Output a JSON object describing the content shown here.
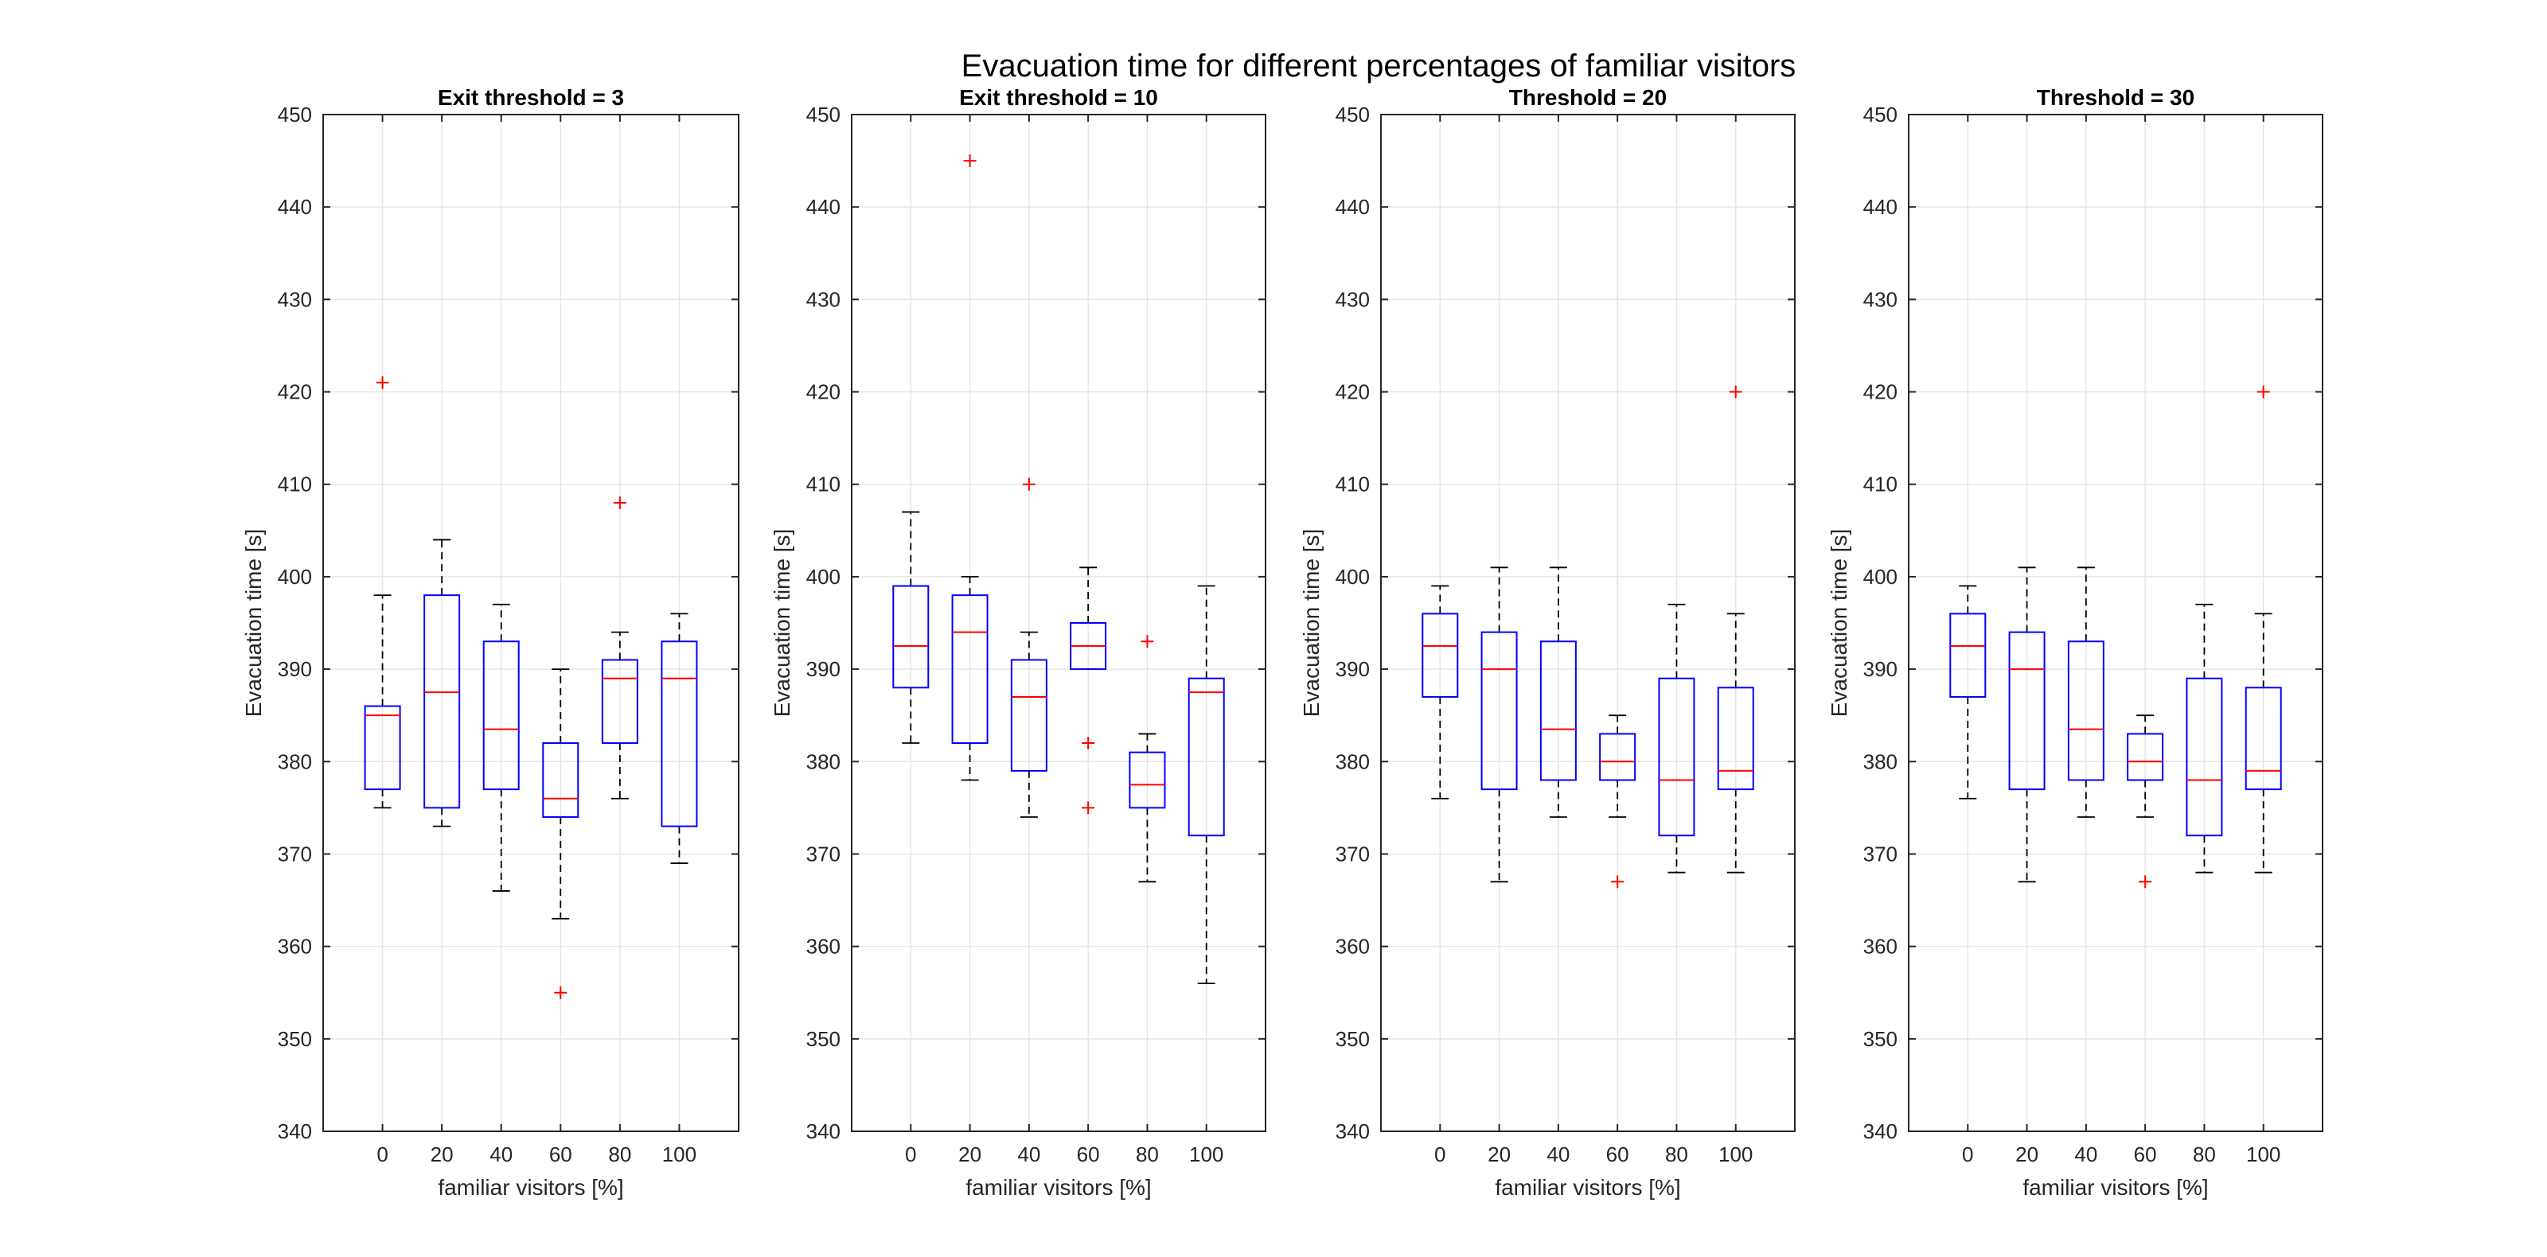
{
  "figure_title": "Evacuation time for different percentages of familiar visitors",
  "colors": {
    "box": "#0000ff",
    "median": "#ff0000",
    "whisker": "#000000",
    "outlier": "#ff0000",
    "grid": "#e6e6e6",
    "axes": "#262626"
  },
  "chart_data": [
    {
      "type": "box",
      "title": "Exit threshold = 3",
      "xlabel": "familiar visitors [%]",
      "ylabel": "Evacuation time [s]",
      "ylim": [
        340,
        450
      ],
      "yticks": [
        340,
        350,
        360,
        370,
        380,
        390,
        400,
        410,
        420,
        430,
        440,
        450
      ],
      "grid": true,
      "categories": [
        "0",
        "20",
        "40",
        "60",
        "80",
        "100"
      ],
      "boxes": [
        {
          "whisker_low": 375,
          "q1": 377,
          "median": 385,
          "q3": 386,
          "whisker_high": 398,
          "outliers": [
            421
          ]
        },
        {
          "whisker_low": 373,
          "q1": 375,
          "median": 387.5,
          "q3": 398,
          "whisker_high": 404,
          "outliers": []
        },
        {
          "whisker_low": 366,
          "q1": 377,
          "median": 383.5,
          "q3": 393,
          "whisker_high": 397,
          "outliers": []
        },
        {
          "whisker_low": 363,
          "q1": 374,
          "median": 376,
          "q3": 382,
          "whisker_high": 390,
          "outliers": [
            355
          ]
        },
        {
          "whisker_low": 376,
          "q1": 382,
          "median": 389,
          "q3": 391,
          "whisker_high": 394,
          "outliers": [
            408
          ]
        },
        {
          "whisker_low": 369,
          "q1": 373,
          "median": 389,
          "q3": 393,
          "whisker_high": 396,
          "outliers": []
        }
      ]
    },
    {
      "type": "box",
      "title": "Exit threshold = 10",
      "xlabel": "familiar visitors [%]",
      "ylabel": "Evacuation time [s]",
      "ylim": [
        340,
        450
      ],
      "yticks": [
        340,
        350,
        360,
        370,
        380,
        390,
        400,
        410,
        420,
        430,
        440,
        450
      ],
      "grid": true,
      "categories": [
        "0",
        "20",
        "40",
        "60",
        "80",
        "100"
      ],
      "boxes": [
        {
          "whisker_low": 382,
          "q1": 388,
          "median": 392.5,
          "q3": 399,
          "whisker_high": 407,
          "outliers": []
        },
        {
          "whisker_low": 378,
          "q1": 382,
          "median": 394,
          "q3": 398,
          "whisker_high": 400,
          "outliers": [
            445
          ]
        },
        {
          "whisker_low": 374,
          "q1": 379,
          "median": 387,
          "q3": 391,
          "whisker_high": 394,
          "outliers": [
            410
          ]
        },
        {
          "whisker_low": 390,
          "q1": 390,
          "median": 392.5,
          "q3": 395,
          "whisker_high": 401,
          "outliers": [
            382,
            375
          ]
        },
        {
          "whisker_low": 367,
          "q1": 375,
          "median": 377.5,
          "q3": 381,
          "whisker_high": 383,
          "outliers": [
            393
          ]
        },
        {
          "whisker_low": 356,
          "q1": 372,
          "median": 387.5,
          "q3": 389,
          "whisker_high": 399,
          "outliers": []
        }
      ]
    },
    {
      "type": "box",
      "title": "Threshold = 20",
      "xlabel": "familiar visitors [%]",
      "ylabel": "Evacuation time [s]",
      "ylim": [
        340,
        450
      ],
      "yticks": [
        340,
        350,
        360,
        370,
        380,
        390,
        400,
        410,
        420,
        430,
        440,
        450
      ],
      "grid": true,
      "categories": [
        "0",
        "20",
        "40",
        "60",
        "80",
        "100"
      ],
      "boxes": [
        {
          "whisker_low": 376,
          "q1": 387,
          "median": 392.5,
          "q3": 396,
          "whisker_high": 399,
          "outliers": []
        },
        {
          "whisker_low": 367,
          "q1": 377,
          "median": 390,
          "q3": 394,
          "whisker_high": 401,
          "outliers": []
        },
        {
          "whisker_low": 374,
          "q1": 378,
          "median": 383.5,
          "q3": 393,
          "whisker_high": 401,
          "outliers": []
        },
        {
          "whisker_low": 374,
          "q1": 378,
          "median": 380,
          "q3": 383,
          "whisker_high": 385,
          "outliers": [
            367
          ]
        },
        {
          "whisker_low": 368,
          "q1": 372,
          "median": 378,
          "q3": 389,
          "whisker_high": 397,
          "outliers": []
        },
        {
          "whisker_low": 368,
          "q1": 377,
          "median": 379,
          "q3": 388,
          "whisker_high": 396,
          "outliers": [
            420
          ]
        }
      ]
    },
    {
      "type": "box",
      "title": "Threshold = 30",
      "xlabel": "familiar visitors [%]",
      "ylabel": "Evacuation time [s]",
      "ylim": [
        340,
        450
      ],
      "yticks": [
        340,
        350,
        360,
        370,
        380,
        390,
        400,
        410,
        420,
        430,
        440,
        450
      ],
      "grid": true,
      "categories": [
        "0",
        "20",
        "40",
        "60",
        "80",
        "100"
      ],
      "boxes": [
        {
          "whisker_low": 376,
          "q1": 387,
          "median": 392.5,
          "q3": 396,
          "whisker_high": 399,
          "outliers": []
        },
        {
          "whisker_low": 367,
          "q1": 377,
          "median": 390,
          "q3": 394,
          "whisker_high": 401,
          "outliers": []
        },
        {
          "whisker_low": 374,
          "q1": 378,
          "median": 383.5,
          "q3": 393,
          "whisker_high": 401,
          "outliers": []
        },
        {
          "whisker_low": 374,
          "q1": 378,
          "median": 380,
          "q3": 383,
          "whisker_high": 385,
          "outliers": [
            367
          ]
        },
        {
          "whisker_low": 368,
          "q1": 372,
          "median": 378,
          "q3": 389,
          "whisker_high": 397,
          "outliers": []
        },
        {
          "whisker_low": 368,
          "q1": 377,
          "median": 379,
          "q3": 388,
          "whisker_high": 396,
          "outliers": [
            420
          ]
        }
      ]
    }
  ]
}
